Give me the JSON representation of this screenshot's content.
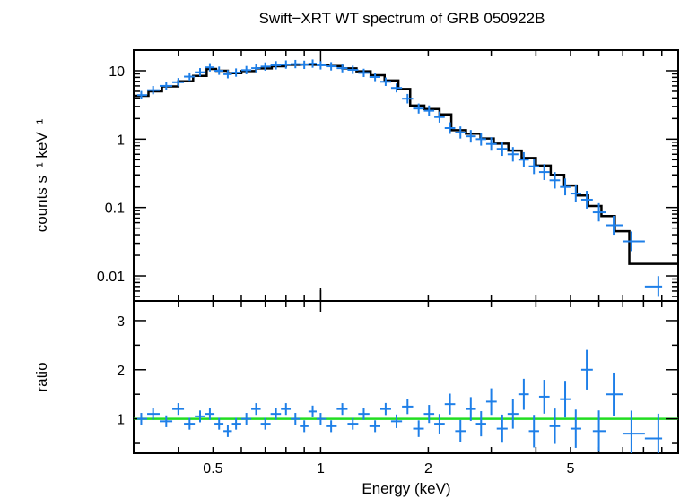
{
  "chart_data": [
    {
      "panel": "spectrum",
      "type": "scatter",
      "title": "Swift−XRT WT spectrum of GRB 050922B",
      "xlabel": "Energy (keV)",
      "ylabel": "counts s⁻¹ keV⁻¹",
      "xscale": "log",
      "yscale": "log",
      "xlim": [
        0.3,
        10
      ],
      "ylim": [
        0.0043,
        20
      ],
      "x_ticks": [
        {
          "value": 0.5,
          "label": "0.5"
        },
        {
          "value": 1,
          "label": "1"
        },
        {
          "value": 2,
          "label": "2"
        },
        {
          "value": 5,
          "label": "5"
        }
      ],
      "y_ticks": [
        {
          "value": 10,
          "label": "10"
        },
        {
          "value": 1,
          "label": "1"
        },
        {
          "value": 0.1,
          "label": "0.1"
        },
        {
          "value": 0.01,
          "label": "0.01"
        }
      ],
      "series": [
        {
          "kind": "data",
          "color": "#1e7fe8",
          "points": [
            [
              0.315,
              4.4
            ],
            [
              0.34,
              5.2
            ],
            [
              0.37,
              6.0
            ],
            [
              0.4,
              6.8
            ],
            [
              0.43,
              8.2
            ],
            [
              0.46,
              9.5
            ],
            [
              0.49,
              11.2
            ],
            [
              0.52,
              10.0
            ],
            [
              0.55,
              8.9
            ],
            [
              0.58,
              9.4
            ],
            [
              0.62,
              10.2
            ],
            [
              0.66,
              10.9
            ],
            [
              0.7,
              11.5
            ],
            [
              0.75,
              12.0
            ],
            [
              0.8,
              12.3
            ],
            [
              0.85,
              12.5
            ],
            [
              0.9,
              12.2
            ],
            [
              0.95,
              12.7
            ],
            [
              1.0,
              12.0
            ],
            [
              1.07,
              11.6
            ],
            [
              1.15,
              10.9
            ],
            [
              1.23,
              10.3
            ],
            [
              1.32,
              9.3
            ],
            [
              1.42,
              8.1
            ],
            [
              1.52,
              6.9
            ],
            [
              1.63,
              5.6
            ],
            [
              1.75,
              3.9
            ],
            [
              1.88,
              2.8
            ],
            [
              2.01,
              2.6
            ],
            [
              2.15,
              2.1
            ],
            [
              2.3,
              1.45
            ],
            [
              2.46,
              1.25
            ],
            [
              2.63,
              1.1
            ],
            [
              2.81,
              1.0
            ],
            [
              3.0,
              0.85
            ],
            [
              3.22,
              0.72
            ],
            [
              3.45,
              0.6
            ],
            [
              3.7,
              0.5
            ],
            [
              3.95,
              0.4
            ],
            [
              4.22,
              0.33
            ],
            [
              4.52,
              0.25
            ],
            [
              4.83,
              0.2
            ],
            [
              5.17,
              0.16
            ],
            [
              5.55,
              0.13
            ],
            [
              6.0,
              0.085
            ],
            [
              6.6,
              0.055
            ],
            [
              7.4,
              0.032
            ],
            [
              8.8,
              0.007
            ]
          ]
        },
        {
          "kind": "model",
          "style": "step",
          "color": "#000000",
          "points": [
            [
              0.3,
              4.3
            ],
            [
              0.33,
              5.0
            ],
            [
              0.36,
              5.9
            ],
            [
              0.4,
              7.0
            ],
            [
              0.44,
              8.4
            ],
            [
              0.48,
              10.6
            ],
            [
              0.51,
              10.0
            ],
            [
              0.55,
              9.2
            ],
            [
              0.6,
              9.9
            ],
            [
              0.66,
              10.8
            ],
            [
              0.73,
              11.6
            ],
            [
              0.8,
              12.2
            ],
            [
              0.88,
              12.3
            ],
            [
              0.96,
              12.2
            ],
            [
              1.05,
              11.7
            ],
            [
              1.15,
              10.8
            ],
            [
              1.26,
              9.8
            ],
            [
              1.38,
              8.6
            ],
            [
              1.51,
              7.2
            ],
            [
              1.65,
              5.4
            ],
            [
              1.78,
              3.1
            ],
            [
              1.95,
              2.75
            ],
            [
              2.15,
              2.3
            ],
            [
              2.32,
              1.35
            ],
            [
              2.55,
              1.2
            ],
            [
              2.8,
              1.02
            ],
            [
              3.05,
              0.86
            ],
            [
              3.35,
              0.68
            ],
            [
              3.65,
              0.53
            ],
            [
              4.0,
              0.41
            ],
            [
              4.4,
              0.3
            ],
            [
              4.8,
              0.21
            ],
            [
              5.2,
              0.15
            ],
            [
              5.6,
              0.105
            ],
            [
              6.1,
              0.075
            ],
            [
              6.65,
              0.045
            ],
            [
              7.3,
              0.015
            ],
            [
              10.0,
              0.015
            ]
          ]
        }
      ]
    },
    {
      "panel": "ratio",
      "type": "scatter",
      "xlabel": "Energy (keV)",
      "ylabel": "ratio",
      "xscale": "log",
      "xlim": [
        0.3,
        10
      ],
      "ylim": [
        0.3,
        3.4
      ],
      "x_ticks": [
        {
          "value": 0.5,
          "label": "0.5"
        },
        {
          "value": 1,
          "label": "1"
        },
        {
          "value": 2,
          "label": "2"
        },
        {
          "value": 5,
          "label": "5"
        }
      ],
      "y_ticks": [
        {
          "value": 1,
          "label": "1"
        },
        {
          "value": 2,
          "label": "2"
        },
        {
          "value": 3,
          "label": "3"
        }
      ],
      "reference_line": {
        "y": 1,
        "color": "#22dd22"
      },
      "series": [
        {
          "kind": "data",
          "color": "#1e7fe8",
          "points": [
            [
              0.315,
              1.0
            ],
            [
              0.34,
              1.1
            ],
            [
              0.37,
              0.95
            ],
            [
              0.4,
              1.2
            ],
            [
              0.43,
              0.9
            ],
            [
              0.46,
              1.05
            ],
            [
              0.49,
              1.1
            ],
            [
              0.52,
              0.9
            ],
            [
              0.55,
              0.75
            ],
            [
              0.58,
              0.9
            ],
            [
              0.62,
              1.0
            ],
            [
              0.66,
              1.2
            ],
            [
              0.7,
              0.9
            ],
            [
              0.75,
              1.1
            ],
            [
              0.8,
              1.2
            ],
            [
              0.85,
              1.0
            ],
            [
              0.9,
              0.85
            ],
            [
              0.95,
              1.15
            ],
            [
              1.0,
              1.0
            ],
            [
              1.07,
              0.85
            ],
            [
              1.15,
              1.2
            ],
            [
              1.23,
              0.9
            ],
            [
              1.32,
              1.1
            ],
            [
              1.42,
              0.85
            ],
            [
              1.52,
              1.2
            ],
            [
              1.63,
              0.95
            ],
            [
              1.75,
              1.25
            ],
            [
              1.88,
              0.8
            ],
            [
              2.01,
              1.1
            ],
            [
              2.15,
              0.9
            ],
            [
              2.3,
              1.3
            ],
            [
              2.46,
              0.75
            ],
            [
              2.63,
              1.2
            ],
            [
              2.81,
              0.9
            ],
            [
              3.0,
              1.35
            ],
            [
              3.22,
              0.8
            ],
            [
              3.45,
              1.1
            ],
            [
              3.7,
              1.5
            ],
            [
              3.95,
              0.75
            ],
            [
              4.22,
              1.45
            ],
            [
              4.52,
              0.85
            ],
            [
              4.83,
              1.4
            ],
            [
              5.17,
              0.8
            ],
            [
              5.55,
              2.0
            ],
            [
              6.0,
              0.75
            ],
            [
              6.6,
              1.5
            ],
            [
              7.4,
              0.7
            ],
            [
              8.8,
              0.6
            ]
          ]
        }
      ]
    }
  ]
}
